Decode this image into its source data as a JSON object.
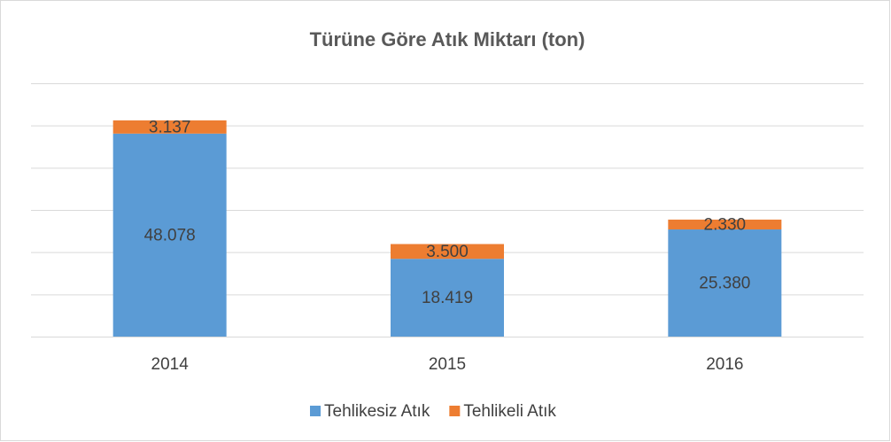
{
  "chart_data": {
    "type": "stacked_bar",
    "title": "Türüne Göre Atık Miktarı (ton)",
    "categories": [
      "2014",
      "2015",
      "2016"
    ],
    "series": [
      {
        "name": "Tehlikesiz Atık",
        "color": "#5b9bd5",
        "values": [
          48078,
          18419,
          25380
        ],
        "value_labels": [
          "48.078",
          "18.419",
          "25.380"
        ]
      },
      {
        "name": "Tehlikeli Atık",
        "color": "#ed7d31",
        "values": [
          3137,
          3500,
          2330
        ],
        "value_labels": [
          "3.137",
          "3.500",
          "2.330"
        ]
      }
    ],
    "ylim": [
      0,
      60000
    ],
    "yticks": [
      0,
      10000,
      20000,
      30000,
      40000,
      50000,
      60000
    ],
    "grid": true,
    "legend": "bottom"
  }
}
